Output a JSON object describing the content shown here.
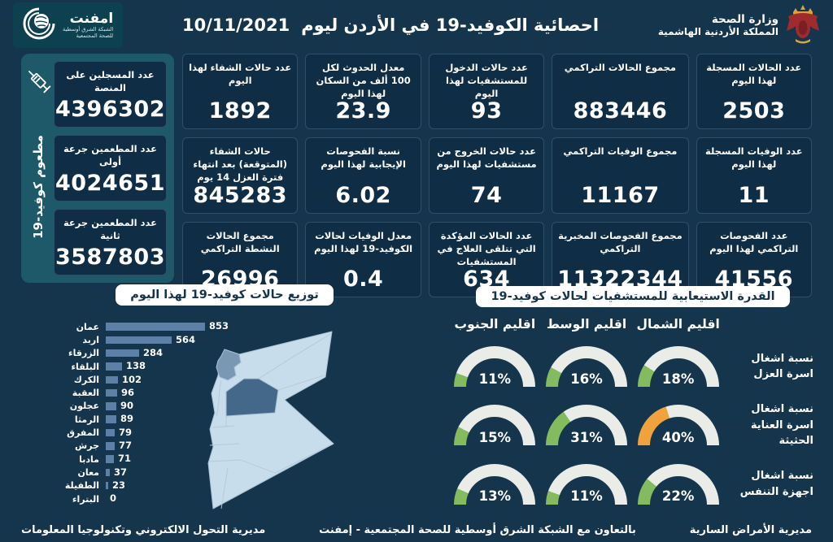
{
  "header": {
    "title": "احصائية الكوفيد-19 في الأردن ليوم",
    "date": "10/11/2021",
    "ministry": {
      "line1": "وزارة الصحة",
      "line2": "المملكة الأردنية الهاشمية"
    },
    "emphnet": {
      "name": "امفنت",
      "sub1": "الشبكة الشرق أوسطية",
      "sub2": "للصحة المجتمعية"
    }
  },
  "icons": {
    "vaccination": "syringe-icon",
    "emphnet_logo": "globe-swoosh-icon",
    "ministry_logo": "jordan-coat-of-arms-icon"
  },
  "colors": {
    "page_bg": "#15354d",
    "card_bg": "#0f2d45",
    "panel_teal": "#1d5968",
    "bar": "#5c80a6",
    "gauge_green": "#84bb5e",
    "gauge_orange": "#f0a23c",
    "gauge_track": "#e9ece7",
    "map_light": "#c7ddeb",
    "map_medium": "#7a98b4",
    "map_dark": "#44688a"
  },
  "stats_cards": [
    {
      "title": "عدد الحالات المسجلة لهذا اليوم",
      "value": "2503"
    },
    {
      "title": "مجموع الحالات التراكمي",
      "value": "883446"
    },
    {
      "title": "عدد حالات الدخول للمستشفيات لهذا اليوم",
      "value": "93"
    },
    {
      "title": "معدل الحدوث لكل 100 ألف من السكان لهذا اليوم",
      "value": "23.9"
    },
    {
      "title": "عدد حالات الشفاء لهذا اليوم",
      "value": "1892"
    },
    {
      "title": "عدد الوفيات المسجلة لهذا اليوم",
      "value": "11"
    },
    {
      "title": "مجموع الوفيات التراكمي",
      "value": "11167"
    },
    {
      "title": "عدد حالات الخروج من مستشفيات لهذا اليوم",
      "value": "74"
    },
    {
      "title": "نسبة الفحوصات الإيجابية لهذا اليوم",
      "value": "6.02"
    },
    {
      "title": "حالات الشفاء (المتوقعة) بعد انتهاء فترة العزل 14 يوم",
      "value": "845283"
    },
    {
      "title": "عدد الفحوصات التراكمي لهذا اليوم",
      "value": "41556"
    },
    {
      "title": "مجموع الفحوصات المخبرية التراكمي",
      "value": "11322344"
    },
    {
      "title": "عدد الحالات المؤكدة التي تتلقى العلاج في المستشفيات",
      "value": "634"
    },
    {
      "title": "معدل الوفيات لحالات الكوفيد-19 لهذا اليوم",
      "value": "0.4"
    },
    {
      "title": "مجموع الحالات النشطة التراكمي",
      "value": "26996"
    }
  ],
  "vaccination": {
    "side_label": "مطعوم كوفيد-19",
    "cards": [
      {
        "title": "عدد المسجلين على المنصة",
        "value": "4396302"
      },
      {
        "title": "عدد المطعمين جرعة أولى",
        "value": "4024651"
      },
      {
        "title": "عدد المطعمين جرعة ثانية",
        "value": "3587803"
      }
    ]
  },
  "chart_data": [
    {
      "type": "bar",
      "orientation": "horizontal",
      "title": "توزيع حالات كوفيد-19 لهذا اليوم",
      "categories": [
        "عمان",
        "اربد",
        "الزرقاء",
        "البلقاء",
        "الكرك",
        "العقبة",
        "عجلون",
        "الرمثا",
        "المفرق",
        "جرش",
        "مادبا",
        "معان",
        "الطفيلة",
        "البتراء"
      ],
      "values": [
        853,
        564,
        284,
        138,
        102,
        96,
        90,
        89,
        79,
        77,
        71,
        37,
        23,
        0
      ],
      "bar_color": "#5c80a6",
      "xlim": [
        0,
        900
      ],
      "grid": false,
      "data_labels": true
    },
    {
      "type": "gauge",
      "title": "القدرة الاستيعابية للمستشفيات لحالات كوفيد-19",
      "regions": [
        "اقليم الشمال",
        "اقليم الوسط",
        "اقليم الجنوب"
      ],
      "rows": [
        {
          "label": "نسبة اشغال اسرة العزل",
          "values": [
            18,
            16,
            11
          ],
          "colors": [
            "#84bb5e",
            "#84bb5e",
            "#84bb5e"
          ]
        },
        {
          "label": "نسبة اشغال اسرة العناية الحثيثة",
          "values": [
            40,
            31,
            15
          ],
          "colors": [
            "#f0a23c",
            "#84bb5e",
            "#84bb5e"
          ]
        },
        {
          "label": "نسبة اشغال اجهزة التنفس",
          "values": [
            22,
            11,
            13
          ],
          "colors": [
            "#84bb5e",
            "#84bb5e",
            "#84bb5e"
          ]
        }
      ],
      "range": [
        0,
        100
      ],
      "unit": "%"
    }
  ],
  "footer": {
    "right": "مديرية الأمراض السارية",
    "center": "بالتعاون مع الشبكة الشرق أوسطية للصحة المجتمعية - إمفنت",
    "left": "مديرية التحول الالكتروني وتكنولوجيا المعلومات"
  }
}
